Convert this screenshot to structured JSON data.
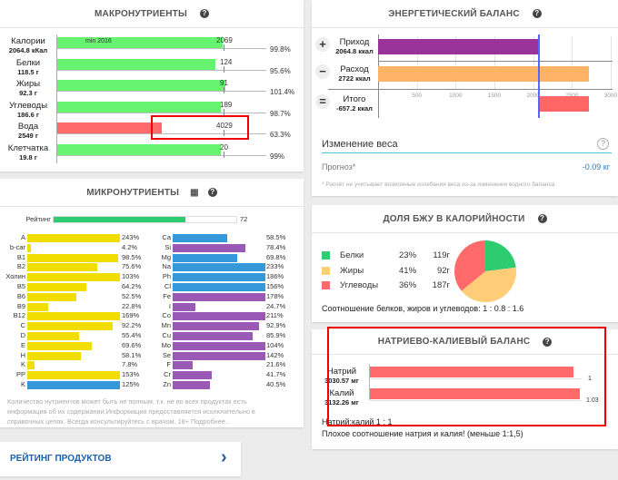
{
  "macro": {
    "title": "МАКРОНУТРИЕНТЫ",
    "help": "?",
    "min_label": "min 2016",
    "rows": [
      {
        "name": "Калории",
        "amount": "2064.8 кКал",
        "norm": "2069",
        "pct": "99.8%",
        "fill": 99.8,
        "color": "#66f36f"
      },
      {
        "name": "Белки",
        "amount": "118.5 г",
        "norm": "124",
        "pct": "95.6%",
        "fill": 95.6,
        "color": "#66f36f"
      },
      {
        "name": "Жиры",
        "amount": "92.3 г",
        "norm": "91",
        "pct": "101.4%",
        "fill": 101.4,
        "color": "#66f36f"
      },
      {
        "name": "Углеводы",
        "amount": "186.6 г",
        "norm": "189",
        "pct": "98.7%",
        "fill": 98.7,
        "color": "#66f36f"
      },
      {
        "name": "Вода",
        "amount": "2549 г",
        "norm": "4029",
        "pct": "63.3%",
        "fill": 63.3,
        "color": "#ff6b6b"
      },
      {
        "name": "Клетчатка",
        "amount": "19.8 г",
        "norm": "20",
        "pct": "99%",
        "fill": 99,
        "color": "#66f36f"
      }
    ]
  },
  "micro": {
    "title": "МИКРОНУТРИЕНТЫ",
    "help": "?",
    "rating_label": "Рейтинг",
    "rating_value": "72",
    "rating_fill": 72,
    "left": [
      [
        "A",
        "243%",
        243,
        "#f2dd00"
      ],
      [
        "b-car",
        "4.2%",
        4.2,
        "#f2dd00"
      ],
      [
        "B1",
        "98.5%",
        98.5,
        "#f2dd00"
      ],
      [
        "B2",
        "75.6%",
        75.6,
        "#f2dd00"
      ],
      [
        "Холин",
        "103%",
        103,
        "#f2dd00"
      ],
      [
        "B5",
        "64.2%",
        64.2,
        "#f2dd00"
      ],
      [
        "B6",
        "52.5%",
        52.5,
        "#f2dd00"
      ],
      [
        "B9",
        "22.8%",
        22.8,
        "#f2dd00"
      ],
      [
        "B12",
        "169%",
        169,
        "#f2dd00"
      ],
      [
        "C",
        "92.2%",
        92.2,
        "#f2dd00"
      ],
      [
        "D",
        "55.4%",
        55.4,
        "#f2dd00"
      ],
      [
        "E",
        "69.6%",
        69.6,
        "#f2dd00"
      ],
      [
        "H",
        "58.1%",
        58.1,
        "#f2dd00"
      ],
      [
        "K",
        "7.8%",
        7.8,
        "#f2dd00"
      ],
      [
        "PP",
        "153%",
        153,
        "#f2dd00"
      ],
      [
        "K",
        "125%",
        125,
        "#3498db"
      ]
    ],
    "right": [
      [
        "Ca",
        "58.5%",
        58.5,
        "#3498db"
      ],
      [
        "Si",
        "78.4%",
        78.4,
        "#9b59b6"
      ],
      [
        "Mg",
        "69.8%",
        69.8,
        "#3498db"
      ],
      [
        "Na",
        "233%",
        233,
        "#3498db"
      ],
      [
        "Ph",
        "186%",
        186,
        "#3498db"
      ],
      [
        "Cl",
        "156%",
        156,
        "#3498db"
      ],
      [
        "Fe",
        "178%",
        178,
        "#9b59b6"
      ],
      [
        "I",
        "24.7%",
        24.7,
        "#9b59b6"
      ],
      [
        "Co",
        "211%",
        211,
        "#9b59b6"
      ],
      [
        "Mn",
        "92.9%",
        92.9,
        "#9b59b6"
      ],
      [
        "Cu",
        "85.9%",
        85.9,
        "#9b59b6"
      ],
      [
        "Mo",
        "104%",
        104,
        "#9b59b6"
      ],
      [
        "Se",
        "142%",
        142,
        "#9b59b6"
      ],
      [
        "F",
        "21.6%",
        21.6,
        "#9b59b6"
      ],
      [
        "Cr",
        "41.7%",
        41.7,
        "#9b59b6"
      ],
      [
        "Zn",
        "40.5%",
        40.5,
        "#9b59b6"
      ]
    ],
    "note": "Количество нутриентов может быть не полным, т.к. не во всех продуктах есть информация об их содержании.Информация предоставляется исключительно в справочных целях. Всегда консультируйтесь с врачом. 18+ Подробнее..."
  },
  "rating_products": {
    "label": "РЕЙТИНГ ПРОДУКТОВ",
    "arrow": "›"
  },
  "energy": {
    "title": "ЭНЕРГЕТИЧЕСКИЙ БАЛАНС",
    "help": "?",
    "rows": [
      {
        "sign": "+",
        "name": "Приход",
        "amount": "2064.8 ккал",
        "value": 2064.8,
        "color": "#993399"
      },
      {
        "sign": "−",
        "name": "Расход",
        "amount": "2722 ккал",
        "value": 2722,
        "color": "#ffb366"
      },
      {
        "sign": "=",
        "name": "Итого",
        "amount": "-657.2 ккал",
        "value": -657.2,
        "color": "#ff6666"
      }
    ],
    "ticks": [
      "500",
      "1000",
      "1500",
      "2000",
      "2500",
      "3000"
    ],
    "weight_title": "Изменение веса",
    "forecast_label": "Прогноз*",
    "forecast_value": "-0.09 кг",
    "note": "* Расчёт не учитывает возможные колебания веса из-за изменения водного баланса"
  },
  "bju": {
    "title": "ДОЛЯ БЖУ В КАЛОРИЙНОСТИ",
    "help": "?",
    "items": [
      {
        "name": "Белки",
        "pct": "23%",
        "grams": "119г",
        "value": 23,
        "color": "#2ecc71"
      },
      {
        "name": "Жиры",
        "pct": "41%",
        "grams": "92г",
        "value": 41,
        "color": "#ffcc77"
      },
      {
        "name": "Углеводы",
        "pct": "36%",
        "grams": "187г",
        "value": 36,
        "color": "#ff6b6b"
      }
    ],
    "ratio": "Соотношение белков, жиров и углеводов: 1 : 0.8 : 1.6"
  },
  "nak": {
    "title": "НАТРИЕВО-КАЛИЕВЫЙ БАЛАНС",
    "help": "?",
    "rows": [
      {
        "name": "Натрий",
        "amount": "3030.57 мг",
        "value": "1",
        "fill": 0.97
      },
      {
        "name": "Калий",
        "amount": "3132.26 мг",
        "value": "1.03",
        "fill": 1.0
      }
    ],
    "ratio": "Натрий:калий 1 : 1",
    "warning": "Плохое соотношение натрия и калия! (меньше 1:1,5)"
  }
}
